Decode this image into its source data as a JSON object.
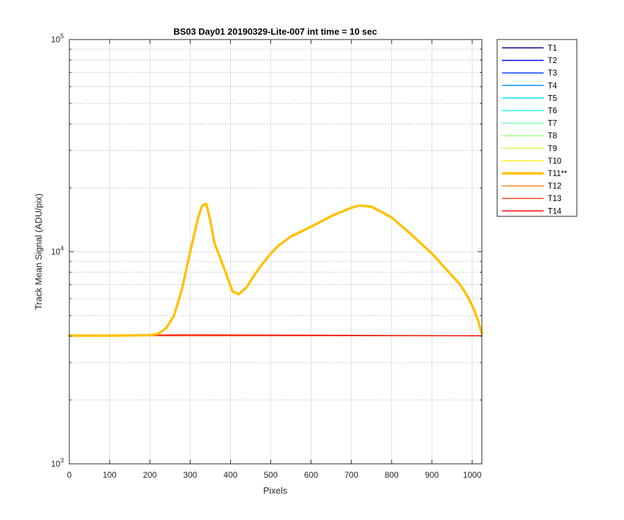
{
  "chart_data": {
    "type": "line",
    "title": "BS03 Day01 20190329-Lite-007 int time = 10 sec",
    "xlabel": "Pixels",
    "ylabel": "Track Mean Signal (ADU/pix)",
    "xlim": [
      0,
      1024
    ],
    "ylim": [
      1000,
      100000
    ],
    "yscale": "log",
    "xticks": [
      0,
      100,
      200,
      300,
      400,
      500,
      600,
      700,
      800,
      900,
      1000
    ],
    "xtick_labels": [
      "0",
      "100",
      "200",
      "300",
      "400",
      "500",
      "600",
      "700",
      "800",
      "900",
      "1000"
    ],
    "yticks": [
      {
        "value": 1000,
        "base": "10",
        "exp": "3"
      },
      {
        "value": 10000,
        "base": "10",
        "exp": "4"
      },
      {
        "value": 100000,
        "base": "10",
        "exp": "5"
      }
    ],
    "grid": true,
    "legend_position": "outside-right",
    "series": [
      {
        "name": "T1",
        "color": "#00008f",
        "highlight": false,
        "x": [
          0,
          1024
        ],
        "y": [
          4020,
          4020
        ]
      },
      {
        "name": "T2",
        "color": "#0000ef",
        "highlight": false,
        "x": [
          0,
          1024
        ],
        "y": [
          4020,
          4020
        ]
      },
      {
        "name": "T3",
        "color": "#0040ff",
        "highlight": false,
        "x": [
          0,
          1024
        ],
        "y": [
          4020,
          4020
        ]
      },
      {
        "name": "T4",
        "color": "#0090ff",
        "highlight": false,
        "x": [
          0,
          1024
        ],
        "y": [
          4020,
          4020
        ]
      },
      {
        "name": "T5",
        "color": "#00d8ff",
        "highlight": false,
        "x": [
          0,
          1024
        ],
        "y": [
          4020,
          4020
        ]
      },
      {
        "name": "T6",
        "color": "#20ffdf",
        "highlight": false,
        "x": [
          0,
          1024
        ],
        "y": [
          4020,
          4020
        ]
      },
      {
        "name": "T7",
        "color": "#70ffb0",
        "highlight": false,
        "x": [
          0,
          1024
        ],
        "y": [
          4020,
          4020
        ]
      },
      {
        "name": "T8",
        "color": "#a0ff80",
        "highlight": false,
        "x": [
          0,
          1024
        ],
        "y": [
          4020,
          4020
        ]
      },
      {
        "name": "T9",
        "color": "#d0ff40",
        "highlight": false,
        "x": [
          0,
          1024
        ],
        "y": [
          4020,
          4020
        ]
      },
      {
        "name": "T10",
        "color": "#ffef20",
        "highlight": false,
        "x": [
          0,
          1024
        ],
        "y": [
          4020,
          4020
        ]
      },
      {
        "name": "T11**",
        "color": "#ffc000",
        "highlight": true,
        "x": [
          0,
          100,
          200,
          220,
          240,
          260,
          280,
          300,
          320,
          330,
          340,
          350,
          360,
          375,
          390,
          405,
          420,
          440,
          460,
          480,
          500,
          520,
          550,
          600,
          650,
          700,
          720,
          750,
          800,
          850,
          900,
          950,
          970,
          990,
          1005,
          1015,
          1024
        ],
        "y": [
          4020,
          4020,
          4040,
          4100,
          4350,
          5000,
          6700,
          10000,
          14500,
          16500,
          16800,
          14000,
          11000,
          9300,
          7800,
          6500,
          6300,
          6800,
          7800,
          8800,
          9800,
          10700,
          11800,
          13100,
          14700,
          16100,
          16500,
          16300,
          14500,
          12000,
          9800,
          7700,
          7000,
          6100,
          5300,
          4700,
          4100
        ]
      },
      {
        "name": "T12",
        "color": "#ff8020",
        "highlight": false,
        "x": [
          0,
          1024
        ],
        "y": [
          4020,
          4020
        ]
      },
      {
        "name": "T13",
        "color": "#ff4020",
        "highlight": false,
        "x": [
          0,
          1024
        ],
        "y": [
          4020,
          4020
        ]
      },
      {
        "name": "T14",
        "color": "#ef0000",
        "highlight": false,
        "x": [
          0,
          300,
          600,
          1024
        ],
        "y": [
          4020,
          4060,
          4040,
          4010
        ]
      }
    ]
  }
}
